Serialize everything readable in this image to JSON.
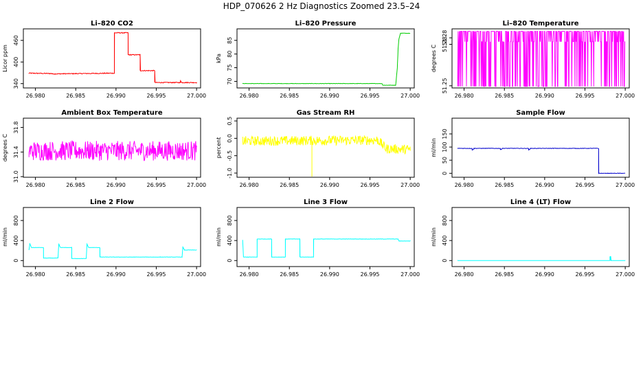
{
  "figure": {
    "title": "HDP_070626  2 Hz Diagnostics Zoomed 23.5–24"
  },
  "chart_data": [
    {
      "type": "line",
      "title": "Li–820 CO2",
      "xlabel": "",
      "ylabel": "Licor ppm",
      "xlim": [
        26.9785,
        27.0005
      ],
      "ylim": [
        328,
        492
      ],
      "xticks": [
        "26.980",
        "26.985",
        "26.990",
        "26.995",
        "27.000"
      ],
      "yticks": [
        "340",
        "400",
        "460"
      ],
      "color": "#ff0000",
      "noise": 1.2,
      "grid": false,
      "series": [
        {
          "x": [
            26.9792,
            26.982,
            26.9821,
            26.9898,
            26.9898,
            26.9915,
            26.9915,
            26.993,
            26.993,
            26.9948,
            26.9948,
            26.998,
            26.998,
            26.9981,
            26.9981,
            27.0
          ],
          "y": [
            369,
            368,
            367,
            369,
            481,
            481,
            420,
            420,
            376,
            376,
            343,
            343,
            350,
            344,
            343,
            343
          ]
        }
      ]
    },
    {
      "type": "line",
      "title": "Li–820 Pressure",
      "xlabel": "",
      "ylabel": "kPa",
      "xlim": [
        26.9785,
        27.0005
      ],
      "ylim": [
        67.6,
        89.2
      ],
      "xticks": [
        "26.980",
        "26.985",
        "26.990",
        "26.995",
        "27.000"
      ],
      "yticks": [
        "70",
        "75",
        "80",
        "85"
      ],
      "color": "#00cc00",
      "noise": 0.06,
      "grid": false,
      "series": [
        {
          "x": [
            26.9792,
            26.9965,
            26.9966,
            26.9982,
            26.9984,
            26.9985,
            26.9986,
            26.9988,
            27.0
          ],
          "y": [
            69.2,
            69.2,
            68.6,
            68.6,
            75.0,
            82.0,
            85.5,
            87.6,
            87.6
          ]
        }
      ]
    },
    {
      "type": "line",
      "title": "Li–820 Temperature",
      "xlabel": "",
      "ylabel": "degrees C",
      "xlim": [
        26.9785,
        27.0005
      ],
      "ylim": [
        51.2486,
        51.2868
      ],
      "xticks": [
        "26.980",
        "26.985",
        "26.990",
        "26.995",
        "27.000"
      ],
      "yticks": [
        "51.25",
        "51.28",
        "51.28"
      ],
      "color": "#ff00ff",
      "grid": false,
      "binary": {
        "x0": 26.9792,
        "x1": 27.0,
        "high": 51.2852,
        "mid": 51.2785,
        "low": 51.2496
      }
    },
    {
      "type": "line",
      "title": "Ambient Box Temperature",
      "xlabel": "",
      "ylabel": "degrees C",
      "xlim": [
        26.9785,
        27.0005
      ],
      "ylim": [
        30.99,
        31.95
      ],
      "xticks": [
        "26.980",
        "26.985",
        "26.990",
        "26.995",
        "27.000"
      ],
      "yticks": [
        "31.0",
        "31.4",
        "31.8"
      ],
      "color": "#ff00ff",
      "noise": 0.16,
      "grid": false,
      "series": [
        {
          "x": [
            26.9792,
            27.0
          ],
          "y": [
            31.42,
            31.42
          ]
        }
      ]
    },
    {
      "type": "line",
      "title": "Gas Stream RH",
      "xlabel": "",
      "ylabel": "percent",
      "xlim": [
        26.9785,
        27.0005
      ],
      "ylim": [
        -1.12,
        0.58
      ],
      "xticks": [
        "26.980",
        "26.985",
        "26.990",
        "26.995",
        "27.000"
      ],
      "yticks": [
        "-1.0",
        "-0.5",
        "0.0",
        "0.5"
      ],
      "color": "#ffff00",
      "noise": 0.14,
      "grid": false,
      "series": [
        {
          "x": [
            26.9792,
            26.996,
            26.997,
            27.0
          ],
          "y": [
            -0.08,
            -0.05,
            -0.3,
            -0.32
          ]
        }
      ],
      "spikes": [
        {
          "x": 26.9878,
          "y": -1.1
        }
      ]
    },
    {
      "type": "line",
      "title": "Sample Flow",
      "xlabel": "",
      "ylabel": "ml/min",
      "xlim": [
        26.9785,
        27.0005
      ],
      "ylim": [
        -15,
        210
      ],
      "xticks": [
        "26.980",
        "26.985",
        "26.990",
        "26.995",
        "27.000"
      ],
      "yticks": [
        "0",
        "50",
        "100",
        "150"
      ],
      "color": "#0000cc",
      "noise": 0.8,
      "grid": false,
      "series": [
        {
          "x": [
            26.9792,
            26.981,
            26.981,
            26.9812,
            26.9812,
            26.9845,
            26.9845,
            26.9847,
            26.9847,
            26.988,
            26.988,
            26.9882,
            26.9882,
            26.9967,
            26.9967,
            27.0
          ],
          "y": [
            95,
            95,
            88,
            93,
            95,
            95,
            90,
            93,
            95,
            95,
            88,
            93,
            95,
            95,
            0,
            0
          ]
        }
      ]
    },
    {
      "type": "line",
      "title": "Line 2 Flow",
      "xlabel": "",
      "ylabel": "ml/min",
      "xlim": [
        26.9785,
        27.0005
      ],
      "ylim": [
        -120,
        1060
      ],
      "xticks": [
        "26.980",
        "26.985",
        "26.990",
        "26.995",
        "27.000"
      ],
      "yticks": [
        "0",
        "400",
        "800"
      ],
      "color": "#00ffff",
      "noise": 3,
      "grid": false,
      "series": [
        {
          "x": [
            26.9792,
            26.9793,
            26.9795,
            26.981,
            26.981,
            26.9828,
            26.9829,
            26.9831,
            26.9845,
            26.9845,
            26.9863,
            26.9864,
            26.9866,
            26.988,
            26.988,
            26.9982,
            26.9983,
            26.9985,
            27.0
          ],
          "y": [
            210,
            340,
            260,
            260,
            50,
            50,
            330,
            260,
            260,
            40,
            40,
            330,
            260,
            260,
            70,
            70,
            270,
            210,
            210
          ]
        }
      ]
    },
    {
      "type": "line",
      "title": "Line 3 Flow",
      "xlabel": "",
      "ylabel": "ml/min",
      "xlim": [
        26.9785,
        27.0005
      ],
      "ylim": [
        -120,
        1060
      ],
      "xticks": [
        "26.980",
        "26.985",
        "26.990",
        "26.995",
        "27.000"
      ],
      "yticks": [
        "0",
        "400",
        "800"
      ],
      "color": "#00ffff",
      "noise": 3,
      "grid": false,
      "series": [
        {
          "x": [
            26.9792,
            26.9793,
            26.981,
            26.981,
            26.9828,
            26.9828,
            26.9845,
            26.9845,
            26.9863,
            26.9863,
            26.988,
            26.988,
            26.9985,
            26.9986,
            27.0
          ],
          "y": [
            410,
            70,
            70,
            430,
            430,
            70,
            70,
            430,
            430,
            70,
            70,
            430,
            430,
            390,
            390
          ]
        }
      ]
    },
    {
      "type": "line",
      "title": "Line 4 (LT) Flow",
      "xlabel": "",
      "ylabel": "ml/min",
      "xlim": [
        26.9785,
        27.0005
      ],
      "ylim": [
        -120,
        1060
      ],
      "xticks": [
        "26.980",
        "26.985",
        "26.990",
        "26.995",
        "27.000"
      ],
      "yticks": [
        "0",
        "400",
        "800"
      ],
      "color": "#00ffff",
      "noise": 0.5,
      "grid": false,
      "series": [
        {
          "x": [
            26.9792,
            26.9981,
            26.9981,
            26.9982,
            26.9982,
            27.0
          ],
          "y": [
            0,
            0,
            80,
            80,
            0,
            0
          ]
        }
      ]
    }
  ]
}
